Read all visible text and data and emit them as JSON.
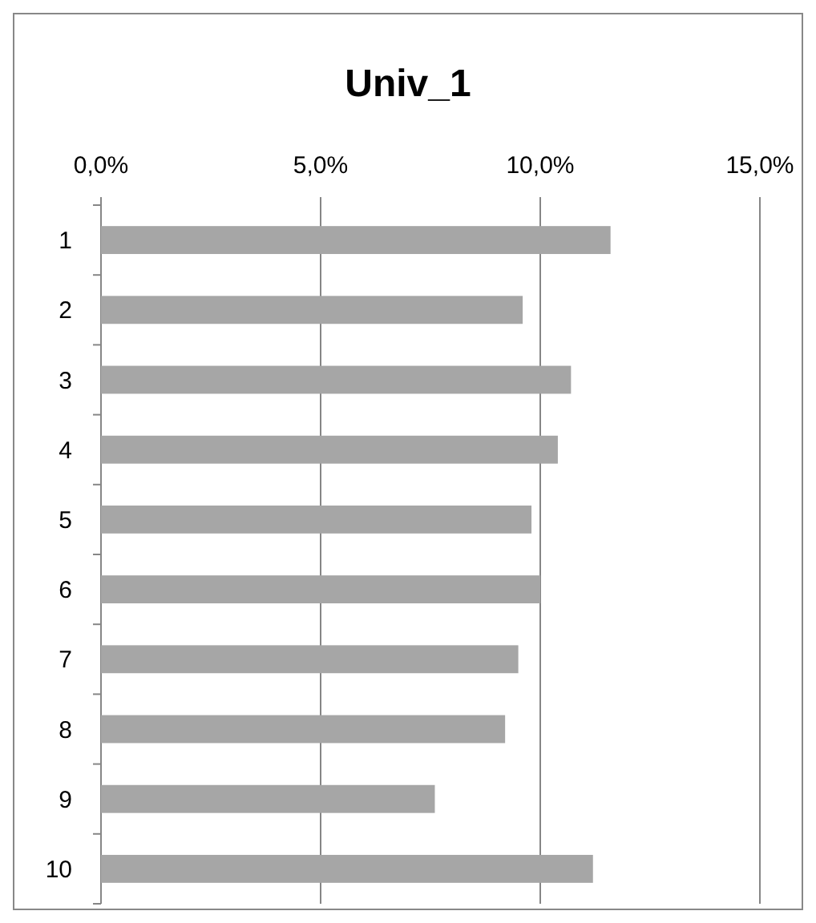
{
  "chart_data": {
    "type": "bar",
    "title": "Univ_1",
    "orientation": "horizontal",
    "categories": [
      "1",
      "2",
      "3",
      "4",
      "5",
      "6",
      "7",
      "8",
      "9",
      "10"
    ],
    "values": [
      11.6,
      9.6,
      10.7,
      10.4,
      9.8,
      10.0,
      9.5,
      9.2,
      7.6,
      11.2
    ],
    "color": "#a6a6a6",
    "xlim": [
      0,
      15
    ],
    "xticks": [
      {
        "value": 0,
        "label": "0,0%"
      },
      {
        "value": 5,
        "label": "5,0%"
      },
      {
        "value": 10,
        "label": "10,0%"
      },
      {
        "value": 15,
        "label": "15,0%"
      }
    ],
    "grid": "x"
  }
}
